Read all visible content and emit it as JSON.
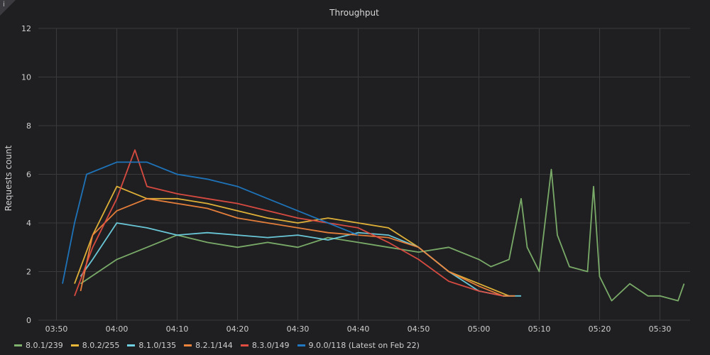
{
  "chart_data": {
    "type": "line",
    "title": "Throughput",
    "ylabel": "Requests count",
    "xlabel": "",
    "ylim": [
      0,
      12
    ],
    "yticks": [
      0,
      2,
      4,
      6,
      8,
      10,
      12
    ],
    "xlim": [
      "03:47",
      "05:35"
    ],
    "xticks": [
      "03:50",
      "04:00",
      "04:10",
      "04:20",
      "04:30",
      "04:40",
      "04:50",
      "05:00",
      "05:10",
      "05:20",
      "05:30"
    ],
    "grid": true,
    "legend_position": "bottom-left",
    "series": [
      {
        "name": "8.0.1/239",
        "color": "#7eb26d",
        "x": [
          "03:54",
          "03:57",
          "04:00",
          "04:05",
          "04:10",
          "04:15",
          "04:20",
          "04:25",
          "04:30",
          "04:35",
          "04:40",
          "04:45",
          "04:50",
          "04:55",
          "05:00",
          "05:02",
          "05:05",
          "05:07",
          "05:08",
          "05:10",
          "05:12",
          "05:13",
          "05:15",
          "05:18",
          "05:19",
          "05:20",
          "05:22",
          "05:25",
          "05:28",
          "05:30",
          "05:33",
          "05:34"
        ],
        "y": [
          1.5,
          2.0,
          2.5,
          3.0,
          3.5,
          3.2,
          3.0,
          3.2,
          3.0,
          3.4,
          3.2,
          3.0,
          2.8,
          3.0,
          2.5,
          2.2,
          2.5,
          5.0,
          3.0,
          2.0,
          6.2,
          3.5,
          2.2,
          2.0,
          5.5,
          1.8,
          0.8,
          1.5,
          1.0,
          1.0,
          0.8,
          1.5
        ]
      },
      {
        "name": "8.0.2/255",
        "color": "#eab839",
        "x": [
          "03:53",
          "03:56",
          "04:00",
          "04:05",
          "04:10",
          "04:15",
          "04:20",
          "04:25",
          "04:30",
          "04:35",
          "04:40",
          "04:45",
          "04:50",
          "04:55",
          "05:00",
          "05:03",
          "05:05"
        ],
        "y": [
          1.5,
          3.5,
          5.5,
          5.0,
          5.0,
          4.8,
          4.5,
          4.2,
          4.0,
          4.2,
          4.0,
          3.8,
          3.0,
          2.0,
          1.5,
          1.2,
          1.0
        ]
      },
      {
        "name": "8.1.0/135",
        "color": "#6ed0e0",
        "x": [
          "03:54",
          "03:56",
          "04:00",
          "04:05",
          "04:10",
          "04:15",
          "04:20",
          "04:25",
          "04:30",
          "04:35",
          "04:40",
          "04:45",
          "04:50",
          "04:55",
          "05:00",
          "05:04",
          "05:07"
        ],
        "y": [
          1.8,
          2.5,
          4.0,
          3.8,
          3.5,
          3.6,
          3.5,
          3.4,
          3.5,
          3.3,
          3.6,
          3.5,
          3.0,
          2.0,
          1.2,
          1.0,
          1.0
        ]
      },
      {
        "name": "8.2.1/144",
        "color": "#ef843c",
        "x": [
          "03:54",
          "03:56",
          "04:00",
          "04:05",
          "04:10",
          "04:15",
          "04:20",
          "04:25",
          "04:30",
          "04:35",
          "04:40",
          "04:45",
          "04:50",
          "04:55",
          "05:00",
          "05:04",
          "05:06"
        ],
        "y": [
          1.2,
          3.5,
          4.5,
          5.0,
          4.8,
          4.6,
          4.2,
          4.0,
          3.8,
          3.6,
          3.5,
          3.4,
          3.0,
          2.0,
          1.4,
          1.0,
          1.0
        ]
      },
      {
        "name": "8.3.0/149",
        "color": "#e24d42",
        "x": [
          "03:53",
          "03:56",
          "04:00",
          "04:03",
          "04:05",
          "04:10",
          "04:15",
          "04:20",
          "04:25",
          "04:30",
          "04:35",
          "04:40",
          "04:45",
          "04:50",
          "04:55",
          "05:00",
          "05:04"
        ],
        "y": [
          1.0,
          3.0,
          5.0,
          7.0,
          5.5,
          5.2,
          5.0,
          4.8,
          4.5,
          4.2,
          4.0,
          3.8,
          3.2,
          2.5,
          1.6,
          1.2,
          1.0
        ]
      },
      {
        "name": "9.0.0/118 (Latest on Feb 22)",
        "color": "#1f78c1",
        "x": [
          "03:51",
          "03:53",
          "03:55",
          "04:00",
          "04:05",
          "04:10",
          "04:15",
          "04:20",
          "04:25",
          "04:30",
          "04:35",
          "04:40"
        ],
        "y": [
          1.5,
          4.0,
          6.0,
          6.5,
          6.5,
          6.0,
          5.8,
          5.5,
          5.0,
          4.5,
          4.0,
          3.5
        ]
      }
    ]
  }
}
